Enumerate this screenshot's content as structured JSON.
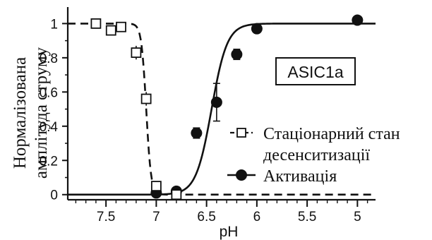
{
  "chart_data": {
    "type": "scatter",
    "ylabel_lines": [
      "Нормалізована",
      "амплітуда струму"
    ],
    "xlabel": "pH",
    "x_reversed": true,
    "xlim": [
      7.88,
      4.82
    ],
    "ylim": [
      -0.03,
      1.08
    ],
    "xticks": [
      7.5,
      7,
      6.5,
      6,
      5.5,
      5
    ],
    "xtick_labels": [
      "7.5",
      "7",
      "6.5",
      "6",
      "5.5",
      "5"
    ],
    "yticks": [
      0,
      0.2,
      0.4,
      0.6,
      0.8,
      1
    ],
    "ytick_labels": [
      "0",
      "0.2",
      "0.4",
      "0.6",
      "0.8",
      "1"
    ],
    "annotation": "ASIC1a",
    "series": [
      {
        "name": "Стаціонарний стан десенситизації",
        "name_lines": [
          "Стаціонарний стан",
          "десенситизації"
        ],
        "marker": "open-square",
        "fit_line": "dashed",
        "fit": {
          "pH50": 7.1,
          "hill": 18
        },
        "points": [
          {
            "x": 7.6,
            "y": 1.0,
            "err": 0.0
          },
          {
            "x": 7.45,
            "y": 0.96,
            "err": 0.02
          },
          {
            "x": 7.35,
            "y": 0.98,
            "err": 0.02
          },
          {
            "x": 7.2,
            "y": 0.83,
            "err": 0.04
          },
          {
            "x": 7.1,
            "y": 0.56,
            "err": 0.04
          },
          {
            "x": 7.0,
            "y": 0.05,
            "err": 0.02
          },
          {
            "x": 6.8,
            "y": 0.0,
            "err": 0.0
          }
        ]
      },
      {
        "name": "Активація",
        "marker": "filled-circle",
        "fit_line": "solid",
        "fit": {
          "pH50": 6.45,
          "hill": 5.6
        },
        "points": [
          {
            "x": 7.0,
            "y": 0.01,
            "err": 0.0
          },
          {
            "x": 6.8,
            "y": 0.02,
            "err": 0.0
          },
          {
            "x": 6.6,
            "y": 0.36,
            "err": 0.03
          },
          {
            "x": 6.4,
            "y": 0.54,
            "err": 0.11
          },
          {
            "x": 6.2,
            "y": 0.82,
            "err": 0.03
          },
          {
            "x": 6.0,
            "y": 0.97,
            "err": 0.02
          },
          {
            "x": 5.0,
            "y": 1.02,
            "err": 0.0
          }
        ]
      }
    ]
  }
}
